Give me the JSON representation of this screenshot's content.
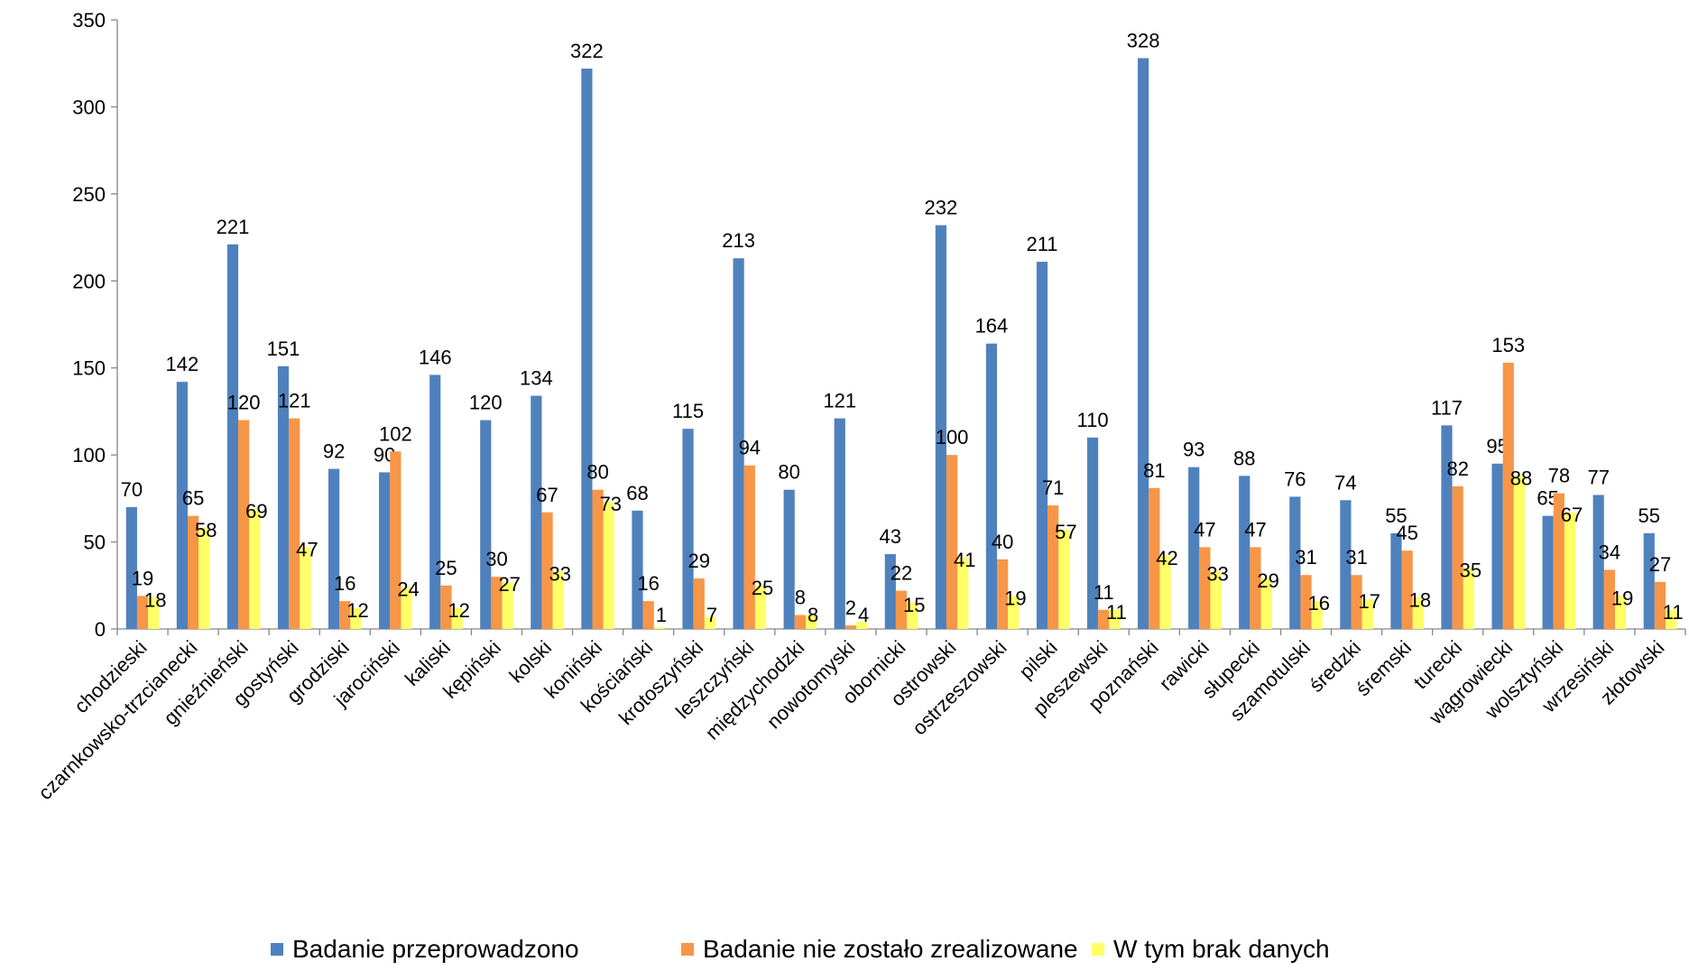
{
  "chart_data": {
    "type": "bar",
    "title": "",
    "xlabel": "",
    "ylabel": "",
    "ylim": [
      0,
      350
    ],
    "yticks": [
      0,
      50,
      100,
      150,
      200,
      250,
      300,
      350
    ],
    "grid": false,
    "legend_position": "bottom",
    "categories": [
      "chodzieski",
      "czarnkowsko-trzcianecki",
      "gnieźnieński",
      "gostyński",
      "grodziski",
      "jarociński",
      "kaliski",
      "kępiński",
      "kolski",
      "koniński",
      "kościański",
      "krotoszyński",
      "leszczyński",
      "międzychodzki",
      "nowotomyski",
      "obornicki",
      "ostrowski",
      "ostrzeszowski",
      "pilski",
      "pleszewski",
      "poznański",
      "rawicki",
      "słupecki",
      "szamotulski",
      "średzki",
      "śremski",
      "turecki",
      "wągrowiecki",
      "wolsztyński",
      "wrzesiński",
      "złotowski"
    ],
    "series": [
      {
        "name": "Badanie przeprowadzono",
        "color": "#4F81BD",
        "values": [
          70,
          142,
          221,
          151,
          92,
          90,
          146,
          120,
          134,
          322,
          68,
          115,
          213,
          80,
          121,
          43,
          232,
          164,
          211,
          110,
          328,
          93,
          88,
          76,
          74,
          55,
          117,
          95,
          65,
          77,
          55
        ]
      },
      {
        "name": "Badanie nie zostało zrealizowane",
        "color": "#F79646",
        "values": [
          19,
          65,
          120,
          121,
          16,
          102,
          25,
          30,
          67,
          80,
          16,
          29,
          94,
          8,
          2,
          22,
          100,
          40,
          71,
          11,
          81,
          47,
          47,
          31,
          31,
          45,
          82,
          153,
          78,
          34,
          27
        ]
      },
      {
        "name": "W tym brak danych",
        "color": "#FFFF66",
        "values": [
          18,
          58,
          69,
          47,
          12,
          24,
          12,
          27,
          33,
          73,
          1,
          7,
          25,
          8,
          4,
          15,
          41,
          19,
          57,
          11,
          42,
          33,
          29,
          16,
          17,
          18,
          35,
          88,
          67,
          19,
          11
        ]
      }
    ]
  }
}
